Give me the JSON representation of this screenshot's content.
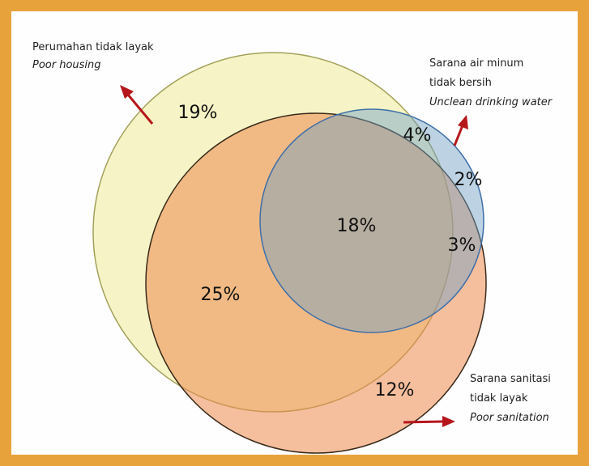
{
  "sets": [
    {
      "name": "Perumahan tidak layak",
      "name_en": "Poor housing"
    },
    {
      "name": [
        "Sarana air minum",
        "tidak bersih"
      ],
      "name_en": "Unclean drinking water"
    },
    {
      "name": [
        "Sarana sanitasi",
        "tidak layak"
      ],
      "name_en": "Poor sanitation"
    }
  ],
  "regions": [
    {
      "label": "19%"
    },
    {
      "label": "4%"
    },
    {
      "label": "2%"
    },
    {
      "label": "18%"
    },
    {
      "label": "3%"
    },
    {
      "label": "25%"
    },
    {
      "label": "12%"
    }
  ]
}
